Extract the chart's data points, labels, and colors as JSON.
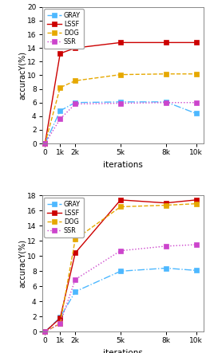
{
  "x_ticks": [
    0,
    1000,
    2000,
    5000,
    8000,
    10000
  ],
  "x_tick_labels": [
    "0",
    "1k",
    "2k",
    "5k",
    "8k",
    "10k"
  ],
  "plot1": {
    "GRAY": [
      0,
      4.8,
      6.0,
      6.1,
      6.1,
      4.4
    ],
    "LSSF": [
      0,
      13.2,
      14.0,
      14.8,
      14.8,
      14.8
    ],
    "DOG": [
      0,
      8.2,
      9.2,
      10.1,
      10.2,
      10.2
    ],
    "SSR": [
      0,
      3.6,
      5.8,
      5.9,
      6.0,
      6.0
    ],
    "ylim": [
      0,
      20
    ],
    "yticks": [
      0,
      2,
      4,
      6,
      8,
      10,
      12,
      14,
      16,
      18,
      20
    ]
  },
  "plot2": {
    "GRAY": [
      0,
      1.9,
      5.3,
      8.0,
      8.4,
      8.1
    ],
    "LSSF": [
      0,
      1.8,
      10.4,
      17.4,
      17.0,
      17.4
    ],
    "DOG": [
      0,
      1.1,
      12.2,
      16.5,
      16.7,
      16.9
    ],
    "SSR": [
      0,
      1.1,
      6.9,
      10.7,
      11.3,
      11.5
    ],
    "ylim": [
      0,
      18
    ],
    "yticks": [
      0,
      2,
      4,
      6,
      8,
      10,
      12,
      14,
      16,
      18
    ]
  },
  "colors": {
    "GRAY": "#4db8ff",
    "LSSF": "#cc0000",
    "DOG": "#e6a800",
    "SSR": "#cc44cc"
  },
  "linestyles": {
    "GRAY": "-.",
    "LSSF": "-",
    "DOG": "--",
    "SSR": ":"
  },
  "xlabel": "iterations",
  "ylabel": "accuracY(%)",
  "legend_order": [
    "GRAY",
    "LSSF",
    "DOG",
    "SSR"
  ],
  "linewidth": 1.0,
  "markersize": 4.5
}
